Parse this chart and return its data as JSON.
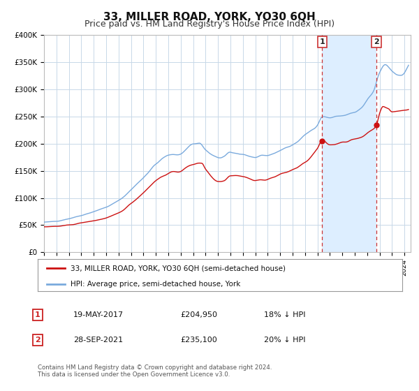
{
  "title": "33, MILLER ROAD, YORK, YO30 6QH",
  "subtitle": "Price paid vs. HM Land Registry's House Price Index (HPI)",
  "title_fontsize": 11,
  "subtitle_fontsize": 9,
  "background_color": "#ffffff",
  "plot_bg_color": "#ffffff",
  "grid_color": "#c8d8e8",
  "shade_color": "#ddeeff",
  "ylim": [
    0,
    400000
  ],
  "yticks": [
    0,
    50000,
    100000,
    150000,
    200000,
    250000,
    300000,
    350000,
    400000
  ],
  "ytick_labels": [
    "£0",
    "£50K",
    "£100K",
    "£150K",
    "£200K",
    "£250K",
    "£300K",
    "£350K",
    "£400K"
  ],
  "hpi_color": "#7aaadd",
  "price_color": "#cc1111",
  "vline_color": "#cc3333",
  "marker1_x": 2017.38,
  "marker1_y": 204950,
  "marker2_x": 2021.74,
  "marker2_y": 235100,
  "annotation1_date": "19-MAY-2017",
  "annotation1_price": "£204,950",
  "annotation1_hpi": "18% ↓ HPI",
  "annotation2_date": "28-SEP-2021",
  "annotation2_price": "£235,100",
  "annotation2_hpi": "20% ↓ HPI",
  "footer1": "Contains HM Land Registry data © Crown copyright and database right 2024.",
  "footer2": "This data is licensed under the Open Government Licence v3.0.",
  "legend_label_price": "33, MILLER ROAD, YORK, YO30 6QH (semi-detached house)",
  "legend_label_hpi": "HPI: Average price, semi-detached house, York",
  "xmin": 1995.0,
  "xmax": 2024.5
}
